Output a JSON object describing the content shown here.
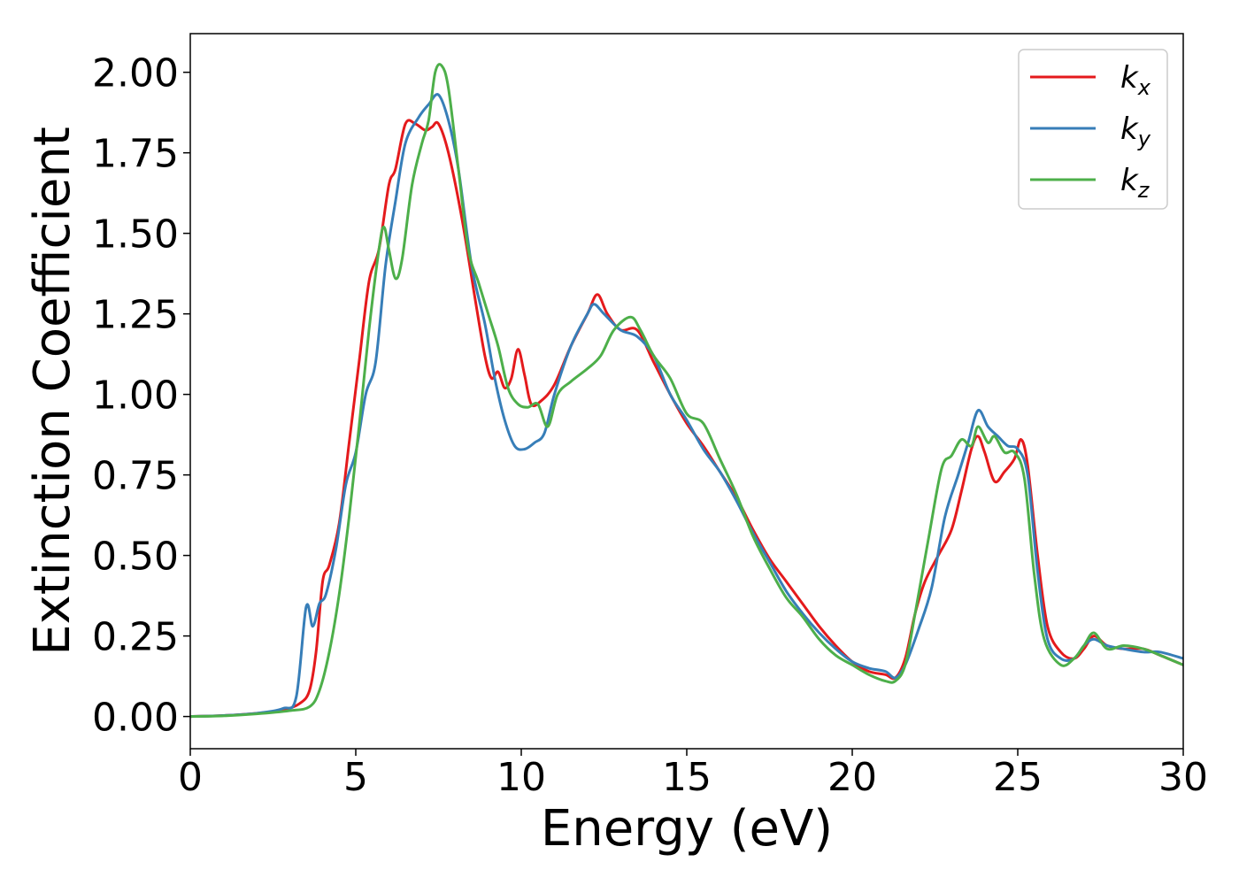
{
  "chart_data": {
    "type": "line",
    "xlabel": "Energy (eV)",
    "ylabel": "Extinction Coefficient",
    "xlim": [
      0,
      30
    ],
    "ylim": [
      -0.1,
      2.12
    ],
    "x_ticks": [
      0,
      5,
      10,
      15,
      20,
      25,
      30
    ],
    "x_tick_labels": [
      "0",
      "5",
      "10",
      "15",
      "20",
      "25",
      "30"
    ],
    "y_ticks": [
      0,
      0.25,
      0.5,
      0.75,
      1.0,
      1.25,
      1.5,
      1.75,
      2.0
    ],
    "y_tick_labels": [
      "0.00",
      "0.25",
      "0.50",
      "0.75",
      "1.00",
      "1.25",
      "1.50",
      "1.75",
      "2.00"
    ],
    "grid": false,
    "legend_position": "top-right",
    "series": [
      {
        "name": "kx",
        "base": "k",
        "sub": "x",
        "color": "#e41a1c",
        "points": [
          [
            0,
            0
          ],
          [
            1,
            0.003
          ],
          [
            2,
            0.01
          ],
          [
            2.8,
            0.02
          ],
          [
            3.3,
            0.04
          ],
          [
            3.6,
            0.08
          ],
          [
            3.8,
            0.2
          ],
          [
            4.0,
            0.42
          ],
          [
            4.2,
            0.47
          ],
          [
            4.5,
            0.6
          ],
          [
            4.8,
            0.85
          ],
          [
            5.1,
            1.1
          ],
          [
            5.4,
            1.35
          ],
          [
            5.7,
            1.45
          ],
          [
            6.0,
            1.65
          ],
          [
            6.2,
            1.7
          ],
          [
            6.5,
            1.84
          ],
          [
            6.8,
            1.84
          ],
          [
            7.1,
            1.82
          ],
          [
            7.3,
            1.83
          ],
          [
            7.5,
            1.84
          ],
          [
            7.8,
            1.75
          ],
          [
            8.2,
            1.55
          ],
          [
            8.6,
            1.3
          ],
          [
            8.9,
            1.12
          ],
          [
            9.1,
            1.05
          ],
          [
            9.3,
            1.07
          ],
          [
            9.5,
            1.02
          ],
          [
            9.7,
            1.05
          ],
          [
            9.9,
            1.14
          ],
          [
            10.1,
            1.06
          ],
          [
            10.3,
            0.97
          ],
          [
            10.6,
            0.98
          ],
          [
            11.0,
            1.03
          ],
          [
            11.5,
            1.15
          ],
          [
            12.0,
            1.25
          ],
          [
            12.3,
            1.31
          ],
          [
            12.6,
            1.25
          ],
          [
            13.0,
            1.2
          ],
          [
            13.5,
            1.2
          ],
          [
            14.0,
            1.1
          ],
          [
            14.5,
            1.0
          ],
          [
            15.0,
            0.91
          ],
          [
            15.5,
            0.84
          ],
          [
            16.0,
            0.76
          ],
          [
            16.5,
            0.68
          ],
          [
            17.0,
            0.58
          ],
          [
            17.5,
            0.49
          ],
          [
            18.0,
            0.42
          ],
          [
            18.5,
            0.35
          ],
          [
            19.0,
            0.28
          ],
          [
            19.5,
            0.22
          ],
          [
            20.0,
            0.17
          ],
          [
            20.5,
            0.14
          ],
          [
            21.0,
            0.13
          ],
          [
            21.3,
            0.12
          ],
          [
            21.6,
            0.18
          ],
          [
            21.9,
            0.32
          ],
          [
            22.2,
            0.42
          ],
          [
            22.6,
            0.5
          ],
          [
            23.0,
            0.58
          ],
          [
            23.3,
            0.7
          ],
          [
            23.6,
            0.83
          ],
          [
            23.8,
            0.87
          ],
          [
            24.0,
            0.82
          ],
          [
            24.3,
            0.73
          ],
          [
            24.6,
            0.76
          ],
          [
            24.9,
            0.8
          ],
          [
            25.1,
            0.86
          ],
          [
            25.3,
            0.78
          ],
          [
            25.6,
            0.5
          ],
          [
            25.9,
            0.28
          ],
          [
            26.3,
            0.2
          ],
          [
            26.7,
            0.18
          ],
          [
            27.0,
            0.21
          ],
          [
            27.3,
            0.25
          ],
          [
            27.7,
            0.22
          ],
          [
            28.2,
            0.21
          ],
          [
            28.8,
            0.21
          ],
          [
            29.3,
            0.19
          ],
          [
            30,
            0.16
          ]
        ]
      },
      {
        "name": "ky",
        "base": "k",
        "sub": "y",
        "color": "#377eb8",
        "points": [
          [
            0,
            0
          ],
          [
            1,
            0.003
          ],
          [
            2,
            0.01
          ],
          [
            2.8,
            0.025
          ],
          [
            3.2,
            0.06
          ],
          [
            3.5,
            0.34
          ],
          [
            3.7,
            0.28
          ],
          [
            3.9,
            0.35
          ],
          [
            4.1,
            0.38
          ],
          [
            4.4,
            0.52
          ],
          [
            4.7,
            0.72
          ],
          [
            5.0,
            0.82
          ],
          [
            5.3,
            1.0
          ],
          [
            5.6,
            1.1
          ],
          [
            5.9,
            1.4
          ],
          [
            6.2,
            1.6
          ],
          [
            6.5,
            1.78
          ],
          [
            6.9,
            1.86
          ],
          [
            7.2,
            1.9
          ],
          [
            7.5,
            1.93
          ],
          [
            7.8,
            1.85
          ],
          [
            8.1,
            1.7
          ],
          [
            8.5,
            1.4
          ],
          [
            8.9,
            1.22
          ],
          [
            9.2,
            1.05
          ],
          [
            9.5,
            0.92
          ],
          [
            9.8,
            0.84
          ],
          [
            10.1,
            0.83
          ],
          [
            10.4,
            0.85
          ],
          [
            10.7,
            0.88
          ],
          [
            11.0,
            1.0
          ],
          [
            11.5,
            1.15
          ],
          [
            12.0,
            1.25
          ],
          [
            12.2,
            1.28
          ],
          [
            12.5,
            1.25
          ],
          [
            13.0,
            1.2
          ],
          [
            13.5,
            1.18
          ],
          [
            14.0,
            1.12
          ],
          [
            14.5,
            1.0
          ],
          [
            15.0,
            0.92
          ],
          [
            15.5,
            0.83
          ],
          [
            16.0,
            0.76
          ],
          [
            16.5,
            0.67
          ],
          [
            17.0,
            0.57
          ],
          [
            17.5,
            0.48
          ],
          [
            18.0,
            0.39
          ],
          [
            18.5,
            0.32
          ],
          [
            19.0,
            0.26
          ],
          [
            19.5,
            0.21
          ],
          [
            20.0,
            0.17
          ],
          [
            20.5,
            0.15
          ],
          [
            21.0,
            0.14
          ],
          [
            21.3,
            0.12
          ],
          [
            21.6,
            0.16
          ],
          [
            22.0,
            0.27
          ],
          [
            22.4,
            0.4
          ],
          [
            22.8,
            0.62
          ],
          [
            23.2,
            0.75
          ],
          [
            23.5,
            0.85
          ],
          [
            23.8,
            0.95
          ],
          [
            24.1,
            0.9
          ],
          [
            24.4,
            0.87
          ],
          [
            24.7,
            0.84
          ],
          [
            25.0,
            0.83
          ],
          [
            25.3,
            0.75
          ],
          [
            25.6,
            0.45
          ],
          [
            25.9,
            0.24
          ],
          [
            26.3,
            0.18
          ],
          [
            26.7,
            0.18
          ],
          [
            27.0,
            0.22
          ],
          [
            27.3,
            0.24
          ],
          [
            27.7,
            0.22
          ],
          [
            28.2,
            0.21
          ],
          [
            28.8,
            0.2
          ],
          [
            29.3,
            0.2
          ],
          [
            30,
            0.18
          ]
        ]
      },
      {
        "name": "kz",
        "base": "k",
        "sub": "z",
        "color": "#4daf4a",
        "points": [
          [
            0,
            0
          ],
          [
            1,
            0.002
          ],
          [
            2,
            0.008
          ],
          [
            3.0,
            0.018
          ],
          [
            3.6,
            0.03
          ],
          [
            3.9,
            0.08
          ],
          [
            4.2,
            0.2
          ],
          [
            4.5,
            0.38
          ],
          [
            4.8,
            0.62
          ],
          [
            5.1,
            0.9
          ],
          [
            5.4,
            1.2
          ],
          [
            5.7,
            1.45
          ],
          [
            5.85,
            1.52
          ],
          [
            6.0,
            1.45
          ],
          [
            6.2,
            1.36
          ],
          [
            6.4,
            1.42
          ],
          [
            6.7,
            1.65
          ],
          [
            7.0,
            1.78
          ],
          [
            7.2,
            1.85
          ],
          [
            7.4,
            2.0
          ],
          [
            7.6,
            2.02
          ],
          [
            7.8,
            1.95
          ],
          [
            8.1,
            1.7
          ],
          [
            8.4,
            1.45
          ],
          [
            8.7,
            1.35
          ],
          [
            9.0,
            1.25
          ],
          [
            9.3,
            1.15
          ],
          [
            9.6,
            1.02
          ],
          [
            9.9,
            0.97
          ],
          [
            10.2,
            0.96
          ],
          [
            10.5,
            0.97
          ],
          [
            10.8,
            0.9
          ],
          [
            11.1,
            1.0
          ],
          [
            11.5,
            1.04
          ],
          [
            12.0,
            1.08
          ],
          [
            12.4,
            1.12
          ],
          [
            12.8,
            1.2
          ],
          [
            13.3,
            1.24
          ],
          [
            13.6,
            1.2
          ],
          [
            14.0,
            1.12
          ],
          [
            14.5,
            1.05
          ],
          [
            15.0,
            0.94
          ],
          [
            15.5,
            0.91
          ],
          [
            16.0,
            0.8
          ],
          [
            16.5,
            0.69
          ],
          [
            17.0,
            0.56
          ],
          [
            17.5,
            0.46
          ],
          [
            18.0,
            0.37
          ],
          [
            18.5,
            0.31
          ],
          [
            19.0,
            0.24
          ],
          [
            19.5,
            0.19
          ],
          [
            20.0,
            0.16
          ],
          [
            20.5,
            0.13
          ],
          [
            21.0,
            0.11
          ],
          [
            21.3,
            0.11
          ],
          [
            21.6,
            0.16
          ],
          [
            21.9,
            0.32
          ],
          [
            22.3,
            0.55
          ],
          [
            22.7,
            0.77
          ],
          [
            23.0,
            0.81
          ],
          [
            23.3,
            0.86
          ],
          [
            23.6,
            0.84
          ],
          [
            23.8,
            0.9
          ],
          [
            24.1,
            0.85
          ],
          [
            24.3,
            0.87
          ],
          [
            24.6,
            0.82
          ],
          [
            24.9,
            0.82
          ],
          [
            25.2,
            0.74
          ],
          [
            25.5,
            0.44
          ],
          [
            25.8,
            0.24
          ],
          [
            26.3,
            0.16
          ],
          [
            26.7,
            0.18
          ],
          [
            27.0,
            0.22
          ],
          [
            27.3,
            0.26
          ],
          [
            27.7,
            0.21
          ],
          [
            28.2,
            0.22
          ],
          [
            28.8,
            0.21
          ],
          [
            29.3,
            0.19
          ],
          [
            30,
            0.16
          ]
        ]
      }
    ]
  }
}
